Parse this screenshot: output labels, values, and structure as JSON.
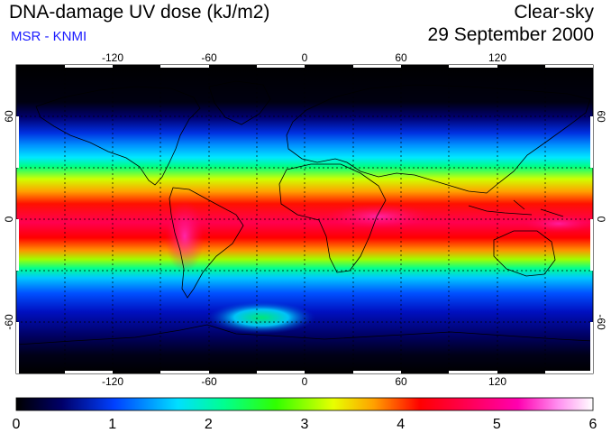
{
  "header": {
    "title": "DNA-damage UV dose (kJ/m2)",
    "subtitle": "MSR - KNMI",
    "mode": "Clear-sky",
    "date": "29 September 2000"
  },
  "map": {
    "projection": "equirectangular",
    "lon_range": [
      -180,
      180
    ],
    "lat_range": [
      -90,
      90
    ],
    "lon_ticks": [
      "-120",
      "-60",
      "0",
      "60",
      "120"
    ],
    "lat_ticks": [
      "60",
      "0",
      "-60"
    ],
    "lat_ticks_right": [
      "60",
      "0",
      "-60"
    ],
    "grid": "dotted 30-degree graticule",
    "coastlines": true
  },
  "colorbar": {
    "min": 0,
    "max": 6,
    "labels": [
      "0",
      "1",
      "2",
      "3",
      "4",
      "5",
      "6"
    ],
    "colors": [
      "#000000",
      "#00009a",
      "#0050ff",
      "#00e8ff",
      "#00ff80",
      "#40ff00",
      "#e8ff00",
      "#ffa000",
      "#ff0000",
      "#ff0050",
      "#ff00b0",
      "#ff90f0",
      "#ffffff"
    ]
  }
}
